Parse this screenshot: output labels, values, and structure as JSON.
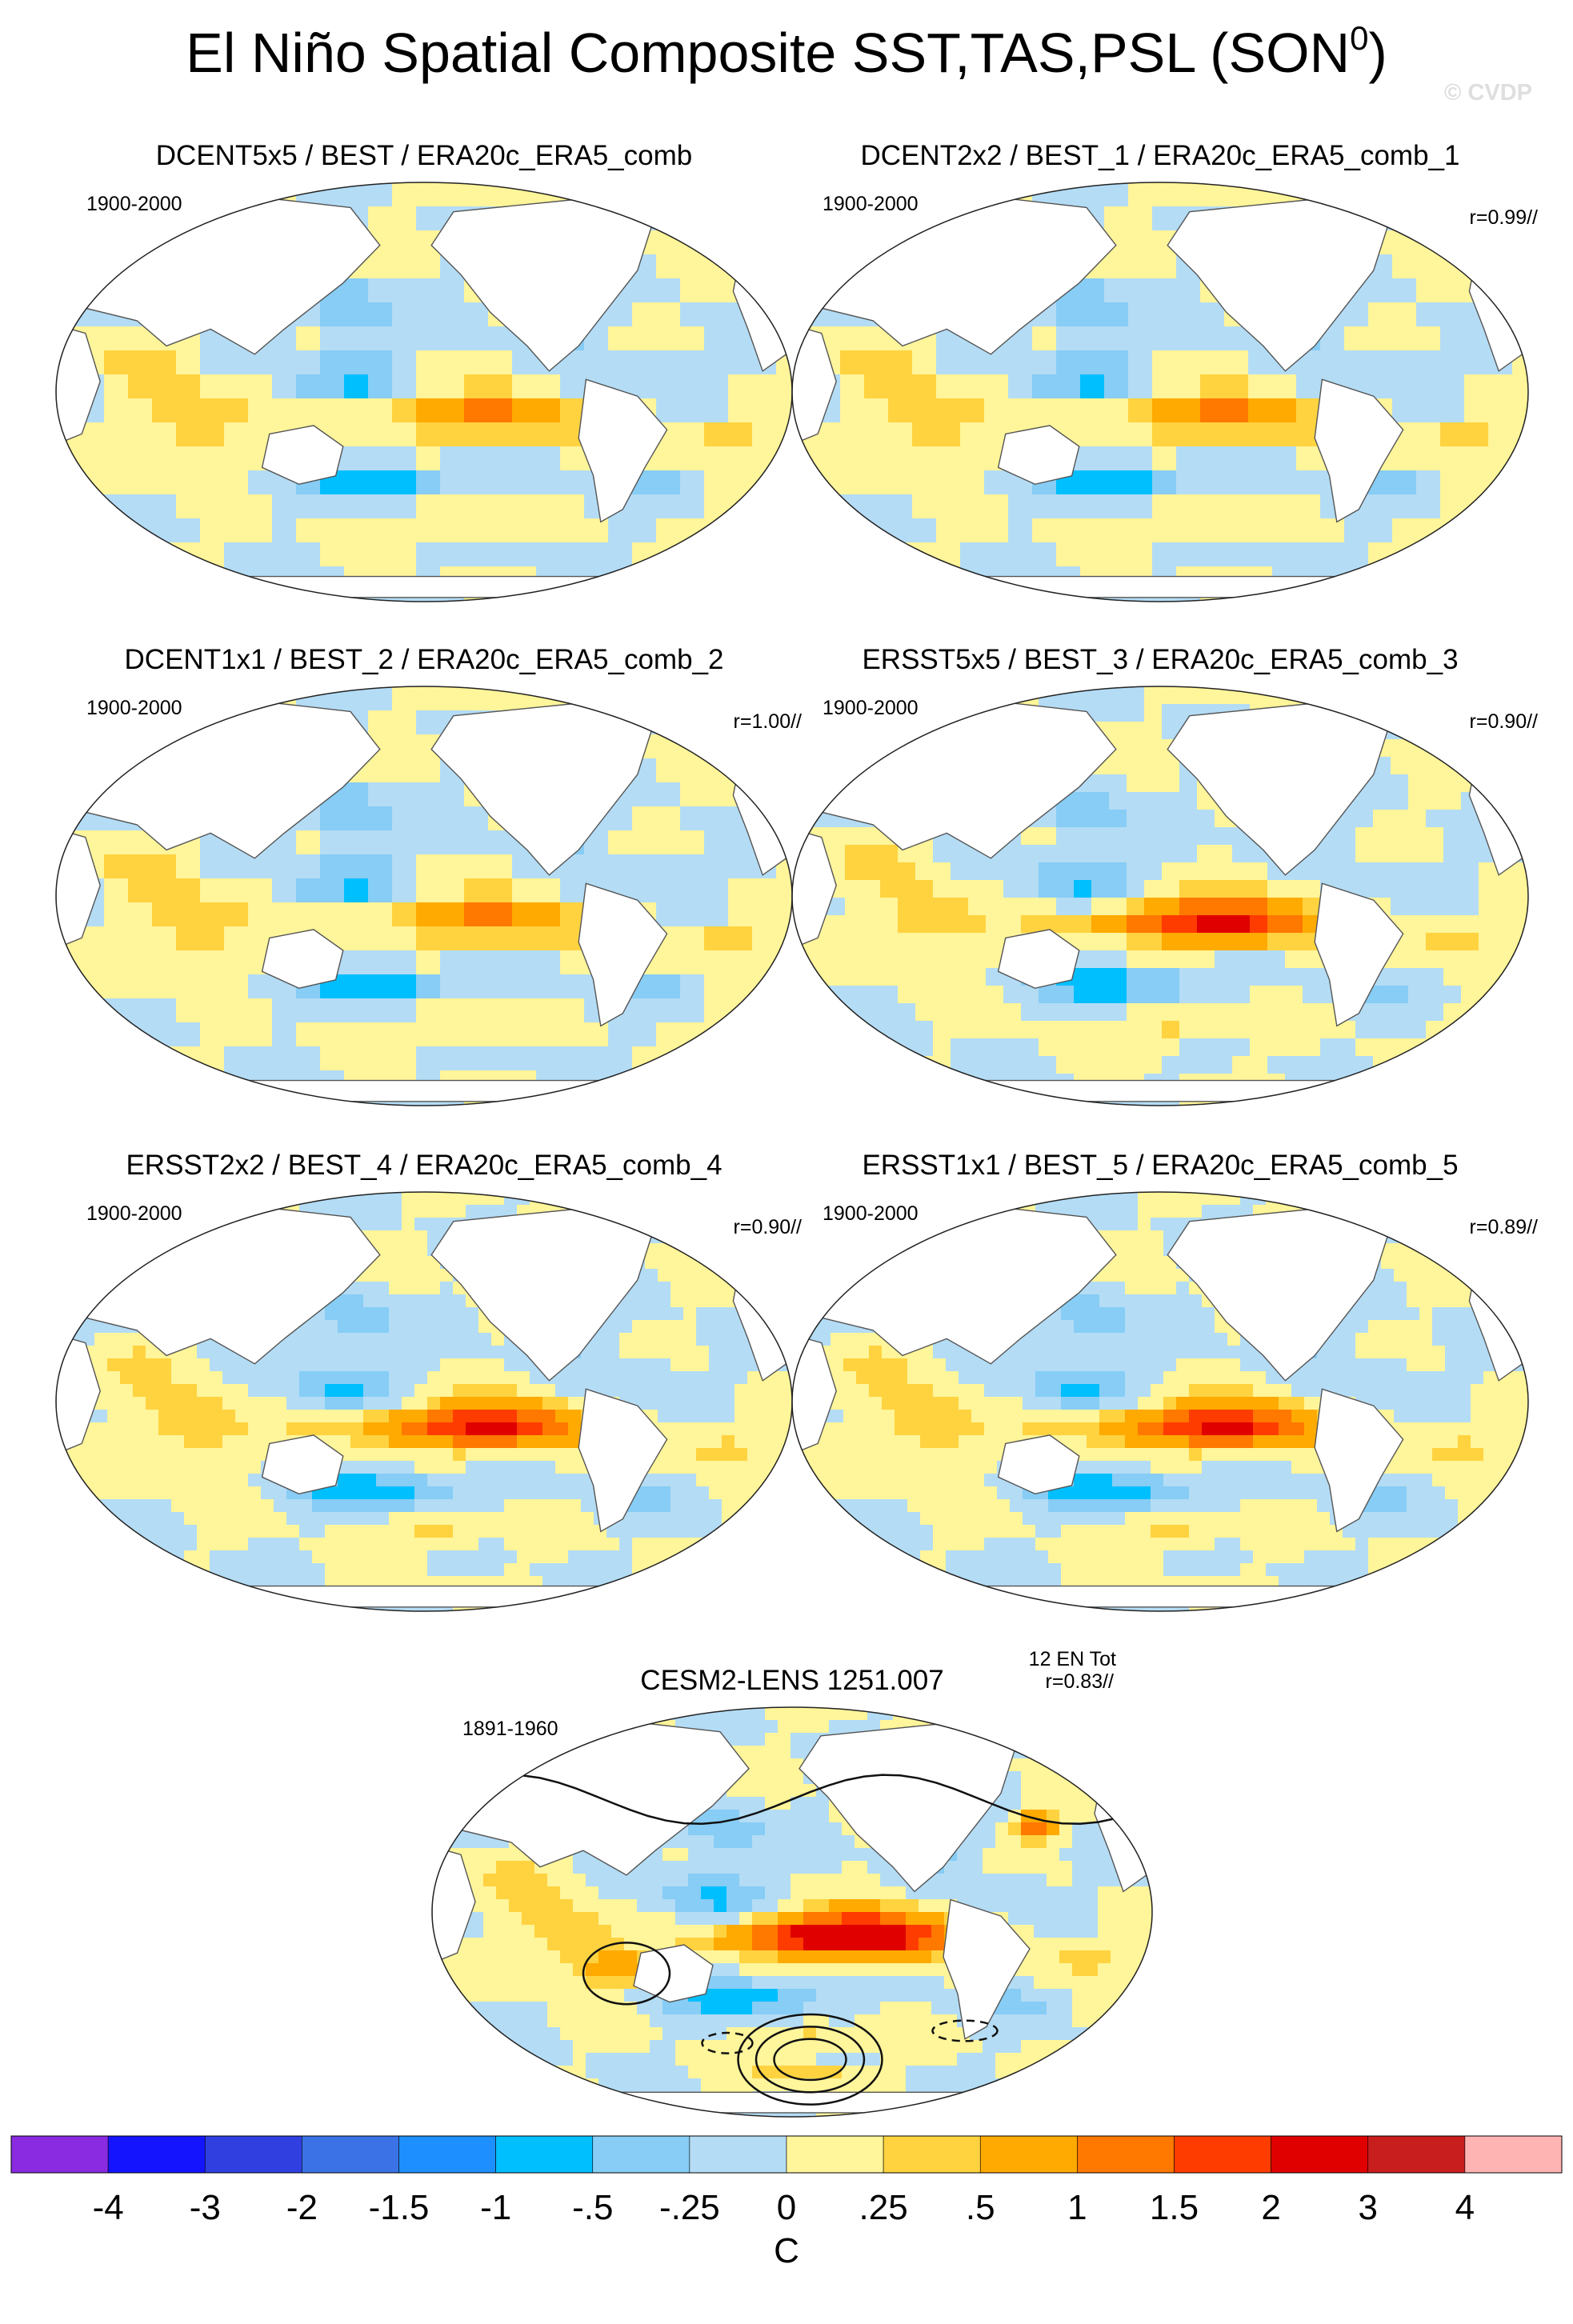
{
  "figure": {
    "title_main": "El Niño Spatial Composite SST,TAS,PSL (SON",
    "title_sup": "0",
    "title_close": ")",
    "watermark": "© CVDP"
  },
  "chart_data": {
    "type": "heatmap",
    "projection": "Robinson",
    "colors": {
      "ocean_bg": "#ffffff",
      "land": "#ffffff",
      "coast": "#555555",
      "contour": "#111111"
    },
    "panels": [
      {
        "title": "DCENT5x5 / BEST / ERA20c_ERA5_comb",
        "period": "1900-2000",
        "stat": "",
        "stat2": "",
        "nino_peak": 0.8,
        "resolution": "coarse",
        "psl_contours": false
      },
      {
        "title": "DCENT2x2 / BEST_1 / ERA20c_ERA5_comb_1",
        "period": "1900-2000",
        "stat": "r=0.99//",
        "stat2": "",
        "nino_peak": 0.8,
        "resolution": "coarse",
        "psl_contours": false
      },
      {
        "title": "DCENT1x1 / BEST_2 / ERA20c_ERA5_comb_2",
        "period": "1900-2000",
        "stat": "r=1.00//",
        "stat2": "",
        "nino_peak": 0.8,
        "resolution": "coarse",
        "psl_contours": false
      },
      {
        "title": "ERSST5x5 / BEST_3 / ERA20c_ERA5_comb_3",
        "period": "1900-2000",
        "stat": "r=0.90//",
        "stat2": "",
        "nino_peak": 1.6,
        "resolution": "medium",
        "psl_contours": false
      },
      {
        "title": "ERSST2x2 / BEST_4 / ERA20c_ERA5_comb_4",
        "period": "1900-2000",
        "stat": "r=0.90//",
        "stat2": "",
        "nino_peak": 1.6,
        "resolution": "fine",
        "psl_contours": false
      },
      {
        "title": "ERSST1x1 / BEST_5 / ERA20c_ERA5_comb_5",
        "period": "1900-2000",
        "stat": "r=0.89//",
        "stat2": "",
        "nino_peak": 1.6,
        "resolution": "fine",
        "psl_contours": false
      },
      {
        "title": "CESM2-LENS 1251.007",
        "period": "1891-1960",
        "stat": "12 EN Tot",
        "stat2": "r=0.83//",
        "nino_peak": 2.3,
        "resolution": "fine",
        "psl_contours": true
      }
    ],
    "colorbar": {
      "label": "C",
      "levels": [
        "-4",
        "-3",
        "-2",
        "-1.5",
        "-1",
        "-.5",
        "-.25",
        "0",
        ".25",
        ".5",
        "1",
        "1.5",
        "2",
        "3",
        "4"
      ],
      "level_values": [
        -4,
        -3,
        -2,
        -1.5,
        -1,
        -0.5,
        -0.25,
        0,
        0.25,
        0.5,
        1,
        1.5,
        2,
        3,
        4
      ],
      "colors": [
        "#8a2be2",
        "#1414ff",
        "#3040e0",
        "#3b73e6",
        "#1e8fff",
        "#00bfff",
        "#87cdf5",
        "#b4dcf5",
        "#fff59a",
        "#ffd340",
        "#ffaa00",
        "#ff7800",
        "#ff3c00",
        "#e00000",
        "#c81e1e",
        "#ffb4b4"
      ]
    }
  }
}
